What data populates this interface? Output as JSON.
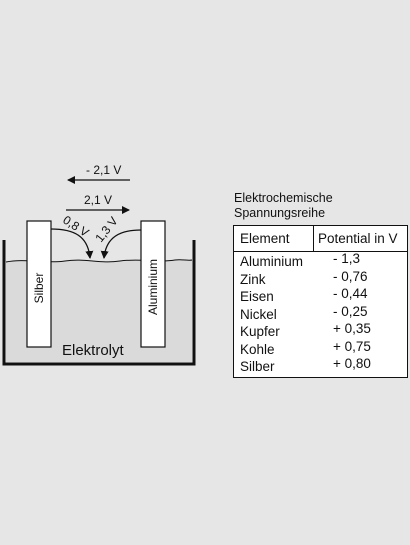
{
  "diagram": {
    "arrow_top_label": "- 2,1 V",
    "arrow_mid_label": "2,1 V",
    "left_arc_label": "0,8 V",
    "right_arc_label": "1,3 V",
    "electrode_left": "Silber",
    "electrode_right": "Aluminium",
    "electrolyte": "Elektrolyt"
  },
  "table": {
    "title_line1": "Elektrochemische",
    "title_line2": "Spannungsreihe",
    "headers": [
      "Element",
      "Potential in V"
    ],
    "rows": [
      {
        "element": "Aluminium",
        "potential": "- 1,3"
      },
      {
        "element": "Zink",
        "potential": "- 0,76"
      },
      {
        "element": "Eisen",
        "potential": "- 0,44"
      },
      {
        "element": "Nickel",
        "potential": "- 0,25"
      },
      {
        "element": "Kupfer",
        "potential": "+ 0,35"
      },
      {
        "element": "Kohle",
        "potential": "+ 0,75"
      },
      {
        "element": "Silber",
        "potential": "+ 0,80"
      }
    ]
  },
  "colors": {
    "background": "#e6e6e6",
    "liquid": "#dadada",
    "electrode_fill": "#ffffff",
    "line": "#111111"
  }
}
